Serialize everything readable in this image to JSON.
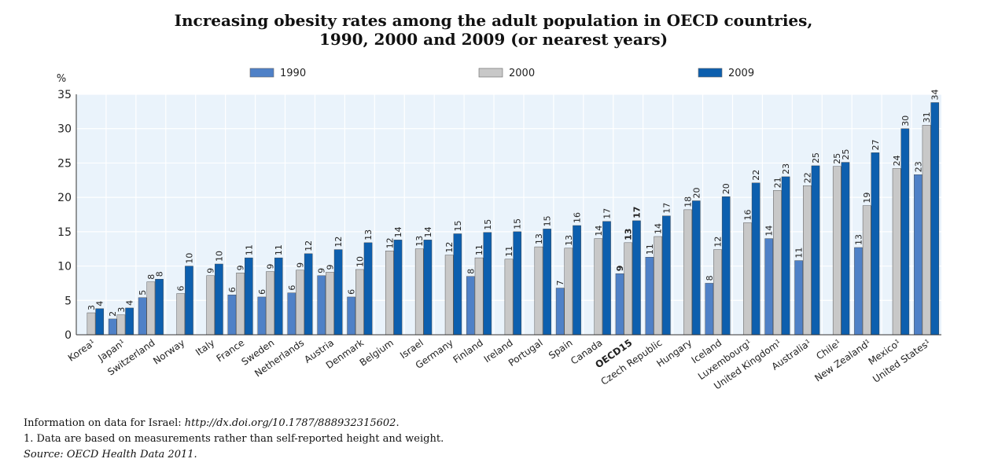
{
  "title_line1": "Increasing obesity rates among the adult population in OECD countries,",
  "title_line2": "1990, 2000 and 2009 (or nearest years)",
  "notes": {
    "israel_prefix": "Information on data for Israel: ",
    "israel_link": "http://dx.doi.org/10.1787/888932315602",
    "israel_suffix": ".",
    "footnote": "1.  Data are based on measurements rather than self-reported height and weight.",
    "source_label": "Source:",
    "source_text": "OECD Health Data 2011."
  },
  "colors": {
    "1990": "#4f81c7",
    "2000": "#c8c8c8",
    "2009": "#0d5fae",
    "plot_bg": "#eaf3fb",
    "grid": "#ffffff"
  },
  "chart_data": {
    "type": "bar",
    "ylabel": "%",
    "ylim": [
      0,
      35
    ],
    "yticks": [
      0,
      5,
      10,
      15,
      20,
      25,
      30,
      35
    ],
    "legend_position": "top",
    "categories": [
      "Korea¹",
      "Japan¹",
      "Switzerland",
      "Norway",
      "Italy",
      "France",
      "Sweden",
      "Netherlands",
      "Austria",
      "Denmark",
      "Belgium",
      "Israel",
      "Germany",
      "Finland",
      "Ireland",
      "Portugal",
      "Spain",
      "Canada",
      "OECD15",
      "Czech Republic",
      "Hungary",
      "Iceland",
      "Luxembourg¹",
      "United Kingdom¹",
      "Australia¹",
      "Chile¹",
      "New Zealand¹",
      "Mexico¹",
      "United States¹"
    ],
    "highlight_category": "OECD15",
    "series": [
      {
        "name": "1990",
        "values": [
          null,
          2.3,
          5.4,
          null,
          null,
          5.8,
          5.5,
          6.1,
          8.6,
          5.5,
          null,
          null,
          null,
          8.5,
          null,
          null,
          6.8,
          null,
          8.9,
          11.3,
          null,
          7.5,
          null,
          14.0,
          10.8,
          null,
          12.7,
          null,
          23.3
        ],
        "labels": [
          "",
          "2",
          "5",
          "",
          "",
          "6",
          "6",
          "6",
          "9",
          "6",
          "",
          "",
          "",
          "8",
          "",
          "",
          "7",
          "",
          "9",
          "11",
          "",
          "8",
          "",
          "14",
          "11",
          "",
          "13",
          "",
          "23"
        ]
      },
      {
        "name": "2000",
        "values": [
          3.2,
          2.9,
          7.7,
          6.0,
          8.6,
          9.0,
          9.2,
          9.4,
          9.1,
          9.5,
          12.2,
          12.5,
          11.6,
          11.2,
          11.0,
          12.8,
          12.6,
          14.0,
          13.4,
          14.3,
          18.2,
          12.4,
          16.3,
          21.0,
          21.7,
          24.5,
          18.8,
          24.2,
          30.5
        ],
        "labels": [
          "3",
          "3",
          "8",
          "6",
          "9",
          "9",
          "9",
          "9",
          "9",
          "10",
          "12",
          "13",
          "12",
          "11",
          "11",
          "13",
          "13",
          "14",
          "13",
          "14",
          "18",
          "12",
          "16",
          "21",
          "22",
          "25",
          "19",
          "24",
          "31"
        ]
      },
      {
        "name": "2009",
        "values": [
          3.8,
          3.9,
          8.1,
          10.0,
          10.3,
          11.2,
          11.2,
          11.8,
          12.4,
          13.4,
          13.8,
          13.8,
          14.7,
          14.9,
          15.0,
          15.4,
          15.9,
          16.5,
          16.6,
          17.3,
          19.5,
          20.1,
          22.1,
          23.0,
          24.6,
          25.1,
          26.5,
          30.0,
          33.8
        ],
        "labels": [
          "4",
          "4",
          "8",
          "10",
          "10",
          "11",
          "11",
          "12",
          "12",
          "13",
          "14",
          "14",
          "15",
          "15",
          "15",
          "15",
          "16",
          "17",
          "17",
          "17",
          "20",
          "20",
          "22",
          "23",
          "25",
          "25",
          "27",
          "30",
          "34"
        ]
      }
    ]
  }
}
